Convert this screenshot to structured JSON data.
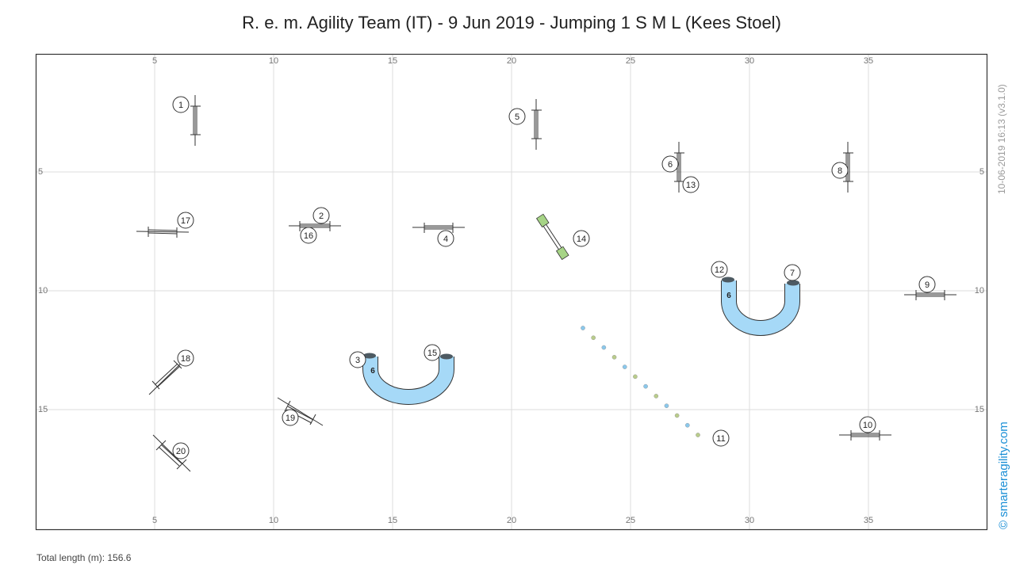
{
  "header": {
    "title": "R. e. m. Agility Team (IT) - 9 Jun 2019 - Jumping 1 S M L (Kees Stoel)"
  },
  "footer": {
    "total_length": "Total length (m): 156.6"
  },
  "side": {
    "stamp": "10-06-2019 16:13   (v3.1.0)",
    "brand": "© smarteragility.com"
  },
  "axes": {
    "x_ticks": [
      "5",
      "10",
      "15",
      "20",
      "25",
      "30",
      "35"
    ],
    "y_ticks": [
      "5",
      "10",
      "15"
    ]
  },
  "obstacles": {
    "jumps": [
      "1",
      "2",
      "4",
      "5",
      "6",
      "8",
      "9",
      "10",
      "13",
      "16",
      "17",
      "18",
      "19",
      "20"
    ],
    "tunnels": [
      {
        "ends": [
          "3",
          "15"
        ],
        "length": "6"
      },
      {
        "ends": [
          "12",
          "7"
        ],
        "length": "6"
      }
    ],
    "weave_poles": "11",
    "tire": "14"
  },
  "colors": {
    "tunnel": "#a6d9f7",
    "tunnel_end": "#4d5a62",
    "tire": "#a6d486",
    "weave_blue": "#8ac8ec",
    "weave_green": "#b9cc8b",
    "brand": "#1a8fd6"
  }
}
